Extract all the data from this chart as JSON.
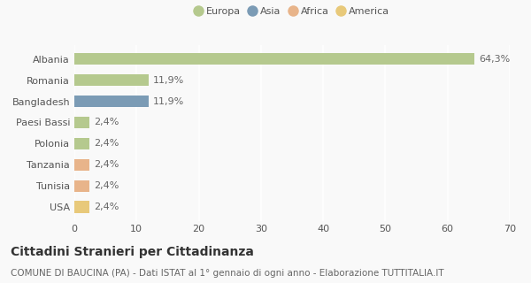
{
  "categories": [
    "Albania",
    "Romania",
    "Bangladesh",
    "Paesi Bassi",
    "Polonia",
    "Tanzania",
    "Tunisia",
    "USA"
  ],
  "values": [
    64.3,
    11.9,
    11.9,
    2.4,
    2.4,
    2.4,
    2.4,
    2.4
  ],
  "labels": [
    "64,3%",
    "11,9%",
    "11,9%",
    "2,4%",
    "2,4%",
    "2,4%",
    "2,4%",
    "2,4%"
  ],
  "bar_colors": [
    "#b5c98e",
    "#b5c98e",
    "#7b9bb5",
    "#b5c98e",
    "#b5c98e",
    "#e8b48a",
    "#e8b48a",
    "#e8c97a"
  ],
  "legend_labels": [
    "Europa",
    "Asia",
    "Africa",
    "America"
  ],
  "legend_colors": [
    "#b5c98e",
    "#7b9bb5",
    "#e8b48a",
    "#e8c97a"
  ],
  "xlim": [
    0,
    70
  ],
  "xticks": [
    0,
    10,
    20,
    30,
    40,
    50,
    60,
    70
  ],
  "title": "Cittadini Stranieri per Cittadinanza",
  "subtitle": "COMUNE DI BAUCINA (PA) - Dati ISTAT al 1° gennaio di ogni anno - Elaborazione TUTTITALIA.IT",
  "background_color": "#f9f9f9",
  "grid_color": "#ffffff",
  "bar_height": 0.55,
  "label_fontsize": 8,
  "tick_fontsize": 8,
  "title_fontsize": 10,
  "subtitle_fontsize": 7.5
}
